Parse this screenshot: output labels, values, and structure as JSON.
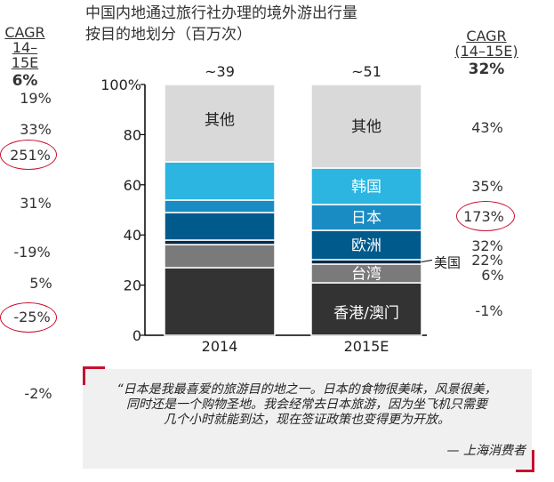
{
  "title_lines": [
    "中国内地通过旅行社办理的境外游出行量",
    "按目的地划分（百万次）"
  ],
  "left_cagr": {
    "label": "CAGR",
    "period": "14–15E",
    "total": "6%",
    "values": [
      "19%",
      "33%",
      "251%",
      "31%",
      "-19%",
      "5%",
      "-25%",
      "-2%"
    ]
  },
  "right_cagr": {
    "label": "CAGR",
    "period": "(14–15E)",
    "total": "32%",
    "values": [
      "43%",
      "35%",
      "173%",
      "32%",
      "22%",
      "6%",
      "-1%"
    ]
  },
  "colors": {
    "其他": "#d9d9d9",
    "韩国": "#2bb5e0",
    "日本": "#1a8cc4",
    "欧洲": "#005a8c",
    "美国": "#002a4a",
    "台湾": "#7a7a7a",
    "香港/澳门": "#333333",
    "highlight": "#c8102e"
  },
  "chart_data": {
    "type": "bar",
    "stacked": true,
    "categories": [
      "2014",
      "2015E"
    ],
    "totals": [
      "~39",
      "~51"
    ],
    "ylim": [
      0,
      100
    ],
    "y_ticks": [
      "0",
      "20",
      "40",
      "60",
      "80",
      "100%"
    ],
    "series": [
      {
        "name": "香港/澳门",
        "values": [
          27,
          21
        ]
      },
      {
        "name": "台湾",
        "values": [
          9,
          7.5
        ]
      },
      {
        "name": "美国",
        "values": [
          2,
          1.5
        ]
      },
      {
        "name": "欧洲",
        "values": [
          11,
          12
        ]
      },
      {
        "name": "日本",
        "values": [
          5,
          10
        ]
      },
      {
        "name": "韩国",
        "values": [
          15,
          14.5
        ]
      },
      {
        "name": "其他",
        "values": [
          31,
          33.5
        ]
      }
    ],
    "labels_2015": [
      "其他",
      "韩国",
      "日本",
      "欧洲",
      "台湾",
      "香港/澳门"
    ],
    "label_2014_top": "其他",
    "callout_label": "美国"
  },
  "quote": {
    "lines": [
      "“日本是我最喜爱的旅游目的地之一。日本的食物很美味，风景很美，",
      "同时还是一个购物圣地。我会经常去日本旅游，因为坐飞机只需要",
      "几个小时就能到达，现在签证政策也变得更为开放。"
    ],
    "source": "— 上海消费者"
  }
}
